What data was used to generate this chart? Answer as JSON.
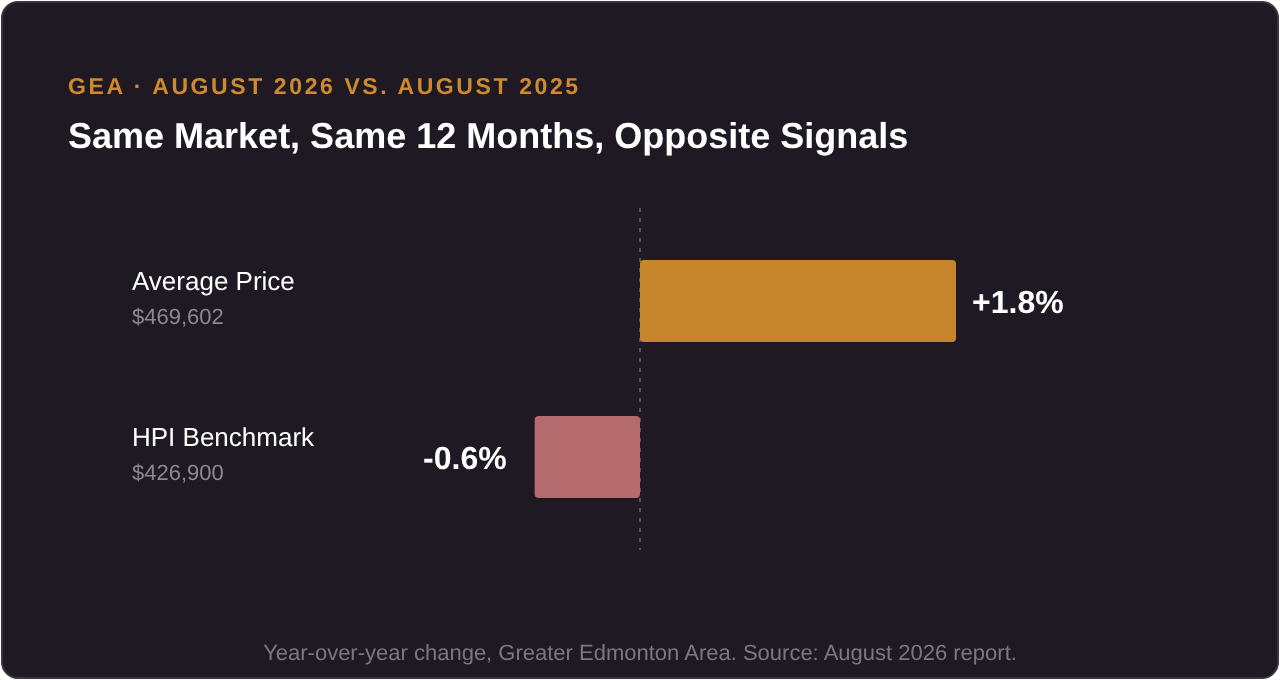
{
  "chart_data": {
    "type": "bar",
    "orientation": "horizontal",
    "subtitle": "GEA · AUGUST 2026 VS. AUGUST 2025",
    "title": "Same Market, Same 12 Months, Opposite Signals",
    "categories": [
      "Average Price\n$469,602",
      "HPI Benchmark\n$426,900"
    ],
    "values": [
      1.8,
      -0.6
    ],
    "colors": [
      "#c8862c",
      "#b56b6e"
    ],
    "value_labels": [
      "+1.8%",
      "-0.6%"
    ],
    "ref_lines": [
      {
        "axis": "x",
        "value": 0,
        "line_style": "dotted",
        "color": "#5a5360"
      }
    ],
    "annotations": [
      "Year-over-year change, Greater Edmonton Area. Source: August 2026 report."
    ]
  }
}
